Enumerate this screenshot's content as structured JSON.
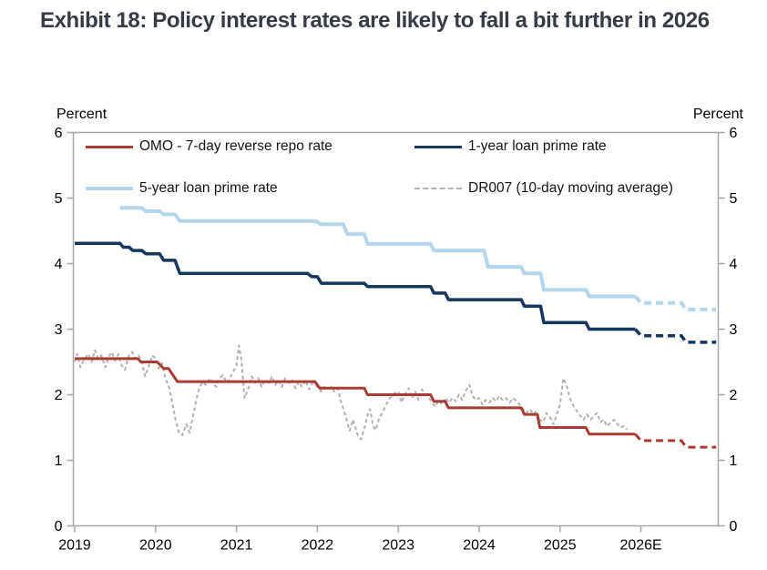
{
  "title": "Exhibit 18: Policy interest rates are likely to fall a bit further in 2026",
  "axis_units": {
    "left": "Percent",
    "right": "Percent"
  },
  "legend": [
    {
      "label": "OMO - 7-day reverse repo rate",
      "color": "#a83c32",
      "style": "solid"
    },
    {
      "label": "1-year loan prime rate",
      "color": "#17365d",
      "style": "solid"
    },
    {
      "label": "5-year loan prime rate",
      "color": "#b5d5ec",
      "style": "solid"
    },
    {
      "label": "DR007 (10-day moving average)",
      "color": "#b1b1b1",
      "style": "dashed"
    }
  ],
  "colors": {
    "red": "#a83c32",
    "navy": "#17365d",
    "lightblue": "#b5d5ec",
    "gray": "#b1b1b1",
    "axis": "#a6a6a6",
    "title_text": "#363b45",
    "tick_text": "#000000"
  },
  "chart_data": {
    "type": "line",
    "title": "Policy interest rates",
    "ylabel": "Percent",
    "ylim": [
      0,
      6
    ],
    "yticks": [
      0,
      1,
      2,
      3,
      4,
      5,
      6
    ],
    "xlim": [
      2019,
      2026.95
    ],
    "xtick_positions": [
      2019,
      2020,
      2021,
      2022,
      2023,
      2024,
      2025,
      2026
    ],
    "xtick_labels": [
      "2019",
      "2020",
      "2021",
      "2022",
      "2023",
      "2024",
      "2025",
      "2026E"
    ],
    "grid": false,
    "legend_position": "top-inside",
    "series": [
      {
        "name": "DR007 (10-day moving average)",
        "color": "#b1b1b1",
        "width": 2,
        "dash": "4 3",
        "actual": [
          [
            2019.0,
            2.5
          ],
          [
            2019.03,
            2.62
          ],
          [
            2019.07,
            2.42
          ],
          [
            2019.12,
            2.55
          ],
          [
            2019.17,
            2.62
          ],
          [
            2019.21,
            2.5
          ],
          [
            2019.25,
            2.68
          ],
          [
            2019.29,
            2.55
          ],
          [
            2019.33,
            2.6
          ],
          [
            2019.38,
            2.42
          ],
          [
            2019.42,
            2.58
          ],
          [
            2019.46,
            2.65
          ],
          [
            2019.5,
            2.52
          ],
          [
            2019.54,
            2.62
          ],
          [
            2019.58,
            2.45
          ],
          [
            2019.62,
            2.38
          ],
          [
            2019.67,
            2.6
          ],
          [
            2019.71,
            2.65
          ],
          [
            2019.75,
            2.55
          ],
          [
            2019.79,
            2.6
          ],
          [
            2019.83,
            2.5
          ],
          [
            2019.87,
            2.28
          ],
          [
            2019.92,
            2.45
          ],
          [
            2019.96,
            2.6
          ],
          [
            2020.0,
            2.55
          ],
          [
            2020.04,
            2.4
          ],
          [
            2020.08,
            2.48
          ],
          [
            2020.12,
            2.25
          ],
          [
            2020.17,
            2.1
          ],
          [
            2020.21,
            1.85
          ],
          [
            2020.25,
            1.6
          ],
          [
            2020.29,
            1.42
          ],
          [
            2020.33,
            1.38
          ],
          [
            2020.38,
            1.55
          ],
          [
            2020.42,
            1.42
          ],
          [
            2020.46,
            1.65
          ],
          [
            2020.5,
            1.9
          ],
          [
            2020.54,
            2.1
          ],
          [
            2020.58,
            2.2
          ],
          [
            2020.62,
            2.15
          ],
          [
            2020.67,
            2.25
          ],
          [
            2020.71,
            2.18
          ],
          [
            2020.75,
            2.12
          ],
          [
            2020.79,
            2.25
          ],
          [
            2020.83,
            2.3
          ],
          [
            2020.88,
            2.18
          ],
          [
            2020.92,
            2.25
          ],
          [
            2020.96,
            2.35
          ],
          [
            2021.0,
            2.45
          ],
          [
            2021.03,
            2.75
          ],
          [
            2021.06,
            2.55
          ],
          [
            2021.1,
            1.95
          ],
          [
            2021.15,
            2.1
          ],
          [
            2021.19,
            2.28
          ],
          [
            2021.23,
            2.18
          ],
          [
            2021.27,
            2.25
          ],
          [
            2021.31,
            2.12
          ],
          [
            2021.35,
            2.22
          ],
          [
            2021.4,
            2.18
          ],
          [
            2021.44,
            2.28
          ],
          [
            2021.48,
            2.15
          ],
          [
            2021.52,
            2.22
          ],
          [
            2021.56,
            2.12
          ],
          [
            2021.6,
            2.25
          ],
          [
            2021.65,
            2.18
          ],
          [
            2021.69,
            2.22
          ],
          [
            2021.73,
            2.1
          ],
          [
            2021.77,
            2.2
          ],
          [
            2021.81,
            2.12
          ],
          [
            2021.85,
            2.22
          ],
          [
            2021.9,
            2.08
          ],
          [
            2021.94,
            2.18
          ],
          [
            2022.0,
            2.12
          ],
          [
            2022.04,
            2.05
          ],
          [
            2022.08,
            2.12
          ],
          [
            2022.13,
            2.08
          ],
          [
            2022.17,
            2.12
          ],
          [
            2022.21,
            2.05
          ],
          [
            2022.25,
            2.1
          ],
          [
            2022.29,
            1.9
          ],
          [
            2022.33,
            1.75
          ],
          [
            2022.37,
            1.58
          ],
          [
            2022.4,
            1.45
          ],
          [
            2022.44,
            1.62
          ],
          [
            2022.47,
            1.5
          ],
          [
            2022.5,
            1.38
          ],
          [
            2022.54,
            1.32
          ],
          [
            2022.58,
            1.48
          ],
          [
            2022.62,
            1.68
          ],
          [
            2022.65,
            1.78
          ],
          [
            2022.69,
            1.52
          ],
          [
            2022.72,
            1.46
          ],
          [
            2022.76,
            1.62
          ],
          [
            2022.8,
            1.72
          ],
          [
            2022.85,
            1.85
          ],
          [
            2022.9,
            1.95
          ],
          [
            2022.95,
            2.02
          ],
          [
            2023.0,
            2.05
          ],
          [
            2023.04,
            1.88
          ],
          [
            2023.08,
            2.0
          ],
          [
            2023.13,
            2.1
          ],
          [
            2023.17,
            1.95
          ],
          [
            2023.21,
            2.05
          ],
          [
            2023.25,
            1.92
          ],
          [
            2023.29,
            2.08
          ],
          [
            2023.33,
            2.02
          ],
          [
            2023.38,
            1.95
          ],
          [
            2023.42,
            1.88
          ],
          [
            2023.46,
            1.82
          ],
          [
            2023.5,
            1.92
          ],
          [
            2023.54,
            1.85
          ],
          [
            2023.58,
            1.95
          ],
          [
            2023.63,
            1.88
          ],
          [
            2023.67,
            1.95
          ],
          [
            2023.71,
            1.9
          ],
          [
            2023.75,
            2.0
          ],
          [
            2023.79,
            1.92
          ],
          [
            2023.83,
            2.05
          ],
          [
            2023.88,
            2.15
          ],
          [
            2023.92,
            1.98
          ],
          [
            2023.96,
            1.92
          ],
          [
            2024.0,
            1.95
          ],
          [
            2024.04,
            1.85
          ],
          [
            2024.08,
            1.92
          ],
          [
            2024.13,
            1.88
          ],
          [
            2024.17,
            1.95
          ],
          [
            2024.21,
            1.9
          ],
          [
            2024.25,
            1.98
          ],
          [
            2024.29,
            1.92
          ],
          [
            2024.33,
            1.95
          ],
          [
            2024.38,
            1.88
          ],
          [
            2024.42,
            1.95
          ],
          [
            2024.46,
            1.9
          ],
          [
            2024.5,
            1.85
          ],
          [
            2024.54,
            1.78
          ],
          [
            2024.58,
            1.72
          ],
          [
            2024.63,
            1.78
          ],
          [
            2024.67,
            1.7
          ],
          [
            2024.71,
            1.75
          ],
          [
            2024.75,
            1.62
          ],
          [
            2024.79,
            1.58
          ],
          [
            2024.83,
            1.72
          ],
          [
            2024.88,
            1.65
          ],
          [
            2024.92,
            1.55
          ],
          [
            2024.96,
            1.7
          ],
          [
            2025.0,
            1.85
          ],
          [
            2025.04,
            2.25
          ],
          [
            2025.08,
            2.15
          ],
          [
            2025.12,
            1.95
          ],
          [
            2025.17,
            1.82
          ],
          [
            2025.21,
            1.75
          ],
          [
            2025.25,
            1.68
          ],
          [
            2025.29,
            1.62
          ],
          [
            2025.33,
            1.7
          ],
          [
            2025.38,
            1.62
          ],
          [
            2025.42,
            1.68
          ],
          [
            2025.46,
            1.72
          ],
          [
            2025.5,
            1.58
          ],
          [
            2025.54,
            1.62
          ],
          [
            2025.58,
            1.52
          ],
          [
            2025.63,
            1.58
          ],
          [
            2025.67,
            1.62
          ],
          [
            2025.71,
            1.55
          ],
          [
            2025.75,
            1.5
          ],
          [
            2025.79,
            1.52
          ],
          [
            2025.83,
            1.47
          ]
        ]
      },
      {
        "name": "5-year loan prime rate",
        "color": "#b5d5ec",
        "width": 4,
        "actual": [
          [
            2019.56,
            4.85
          ],
          [
            2019.83,
            4.85
          ],
          [
            2019.88,
            4.8
          ],
          [
            2020.05,
            4.8
          ],
          [
            2020.1,
            4.75
          ],
          [
            2020.24,
            4.75
          ],
          [
            2020.3,
            4.65
          ],
          [
            2021.98,
            4.65
          ],
          [
            2022.04,
            4.6
          ],
          [
            2022.32,
            4.6
          ],
          [
            2022.37,
            4.45
          ],
          [
            2022.58,
            4.45
          ],
          [
            2022.62,
            4.3
          ],
          [
            2023.4,
            4.3
          ],
          [
            2023.44,
            4.2
          ],
          [
            2024.06,
            4.2
          ],
          [
            2024.11,
            3.95
          ],
          [
            2024.52,
            3.95
          ],
          [
            2024.56,
            3.85
          ],
          [
            2024.76,
            3.85
          ],
          [
            2024.8,
            3.6
          ],
          [
            2025.32,
            3.6
          ],
          [
            2025.36,
            3.5
          ],
          [
            2025.93,
            3.5
          ]
        ],
        "forecast": [
          [
            2025.93,
            3.5
          ],
          [
            2026.0,
            3.4
          ],
          [
            2026.5,
            3.4
          ],
          [
            2026.56,
            3.3
          ],
          [
            2026.93,
            3.3
          ]
        ]
      },
      {
        "name": "1-year loan prime rate",
        "color": "#17365d",
        "width": 3.5,
        "actual": [
          [
            2019.0,
            4.31
          ],
          [
            2019.56,
            4.31
          ],
          [
            2019.6,
            4.25
          ],
          [
            2019.67,
            4.25
          ],
          [
            2019.72,
            4.2
          ],
          [
            2019.83,
            4.2
          ],
          [
            2019.88,
            4.15
          ],
          [
            2020.05,
            4.15
          ],
          [
            2020.1,
            4.05
          ],
          [
            2020.24,
            4.05
          ],
          [
            2020.3,
            3.85
          ],
          [
            2021.88,
            3.85
          ],
          [
            2021.93,
            3.8
          ],
          [
            2022.0,
            3.8
          ],
          [
            2022.05,
            3.7
          ],
          [
            2022.58,
            3.7
          ],
          [
            2022.62,
            3.65
          ],
          [
            2023.4,
            3.65
          ],
          [
            2023.44,
            3.55
          ],
          [
            2023.58,
            3.55
          ],
          [
            2023.62,
            3.45
          ],
          [
            2024.52,
            3.45
          ],
          [
            2024.56,
            3.35
          ],
          [
            2024.76,
            3.35
          ],
          [
            2024.8,
            3.1
          ],
          [
            2025.32,
            3.1
          ],
          [
            2025.36,
            3.0
          ],
          [
            2025.93,
            3.0
          ]
        ],
        "forecast": [
          [
            2025.93,
            3.0
          ],
          [
            2026.0,
            2.9
          ],
          [
            2026.5,
            2.9
          ],
          [
            2026.56,
            2.8
          ],
          [
            2026.93,
            2.8
          ]
        ]
      },
      {
        "name": "OMO - 7-day reverse repo rate",
        "color": "#a83c32",
        "width": 3,
        "actual": [
          [
            2019.0,
            2.55
          ],
          [
            2019.78,
            2.55
          ],
          [
            2019.82,
            2.5
          ],
          [
            2020.02,
            2.5
          ],
          [
            2020.1,
            2.4
          ],
          [
            2020.16,
            2.4
          ],
          [
            2020.27,
            2.2
          ],
          [
            2021.97,
            2.2
          ],
          [
            2022.03,
            2.1
          ],
          [
            2022.58,
            2.1
          ],
          [
            2022.62,
            2.0
          ],
          [
            2023.4,
            2.0
          ],
          [
            2023.44,
            1.9
          ],
          [
            2023.58,
            1.9
          ],
          [
            2023.62,
            1.8
          ],
          [
            2024.52,
            1.8
          ],
          [
            2024.56,
            1.7
          ],
          [
            2024.72,
            1.7
          ],
          [
            2024.75,
            1.5
          ],
          [
            2025.32,
            1.5
          ],
          [
            2025.36,
            1.4
          ],
          [
            2025.93,
            1.4
          ]
        ],
        "forecast": [
          [
            2025.93,
            1.4
          ],
          [
            2026.0,
            1.3
          ],
          [
            2026.5,
            1.3
          ],
          [
            2026.56,
            1.2
          ],
          [
            2026.93,
            1.2
          ]
        ]
      }
    ]
  }
}
